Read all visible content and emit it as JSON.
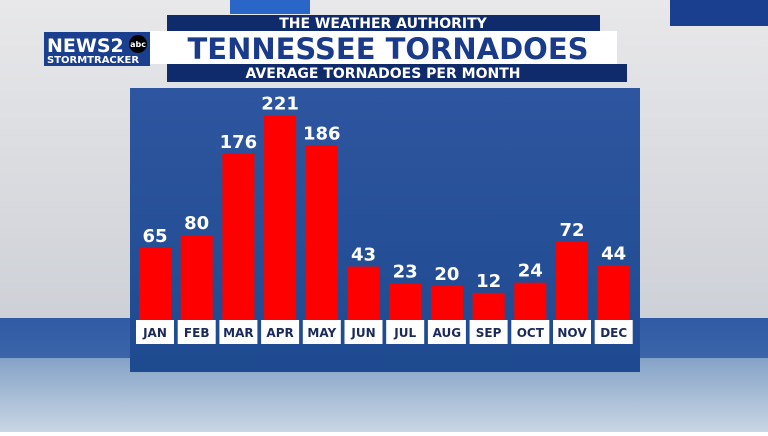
{
  "brand": {
    "name": "NEWS2",
    "network": "abc",
    "tagline": "STORMTRACKER"
  },
  "chart_data": {
    "type": "bar",
    "supertitle": "THE WEATHER AUTHORITY",
    "title": "TENNESSEE TORNADOES",
    "subtitle": "AVERAGE TORNADOES PER MONTH",
    "categories": [
      "JAN",
      "FEB",
      "MAR",
      "APR",
      "MAY",
      "JUN",
      "JUL",
      "AUG",
      "SEP",
      "OCT",
      "NOV",
      "DEC"
    ],
    "values": [
      65,
      80,
      176,
      221,
      186,
      43,
      23,
      20,
      12,
      24,
      72,
      44
    ],
    "color": "#ff0000",
    "ylim": [
      -20,
      230
    ]
  }
}
